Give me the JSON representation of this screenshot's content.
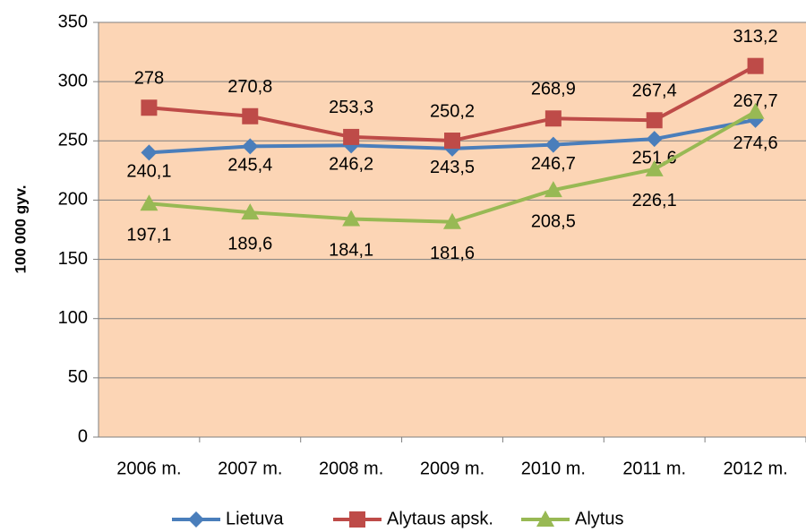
{
  "chart_data": {
    "type": "line",
    "y_label": "100 000 gyv.",
    "categories": [
      "2006 m.",
      "2007 m.",
      "2008 m.",
      "2009 m.",
      "2010 m.",
      "2011 m.",
      "2012 m."
    ],
    "series": [
      {
        "name": "Lietuva",
        "color": "#4a7ebb",
        "marker": "diamond",
        "values": [
          240.1,
          245.4,
          246.2,
          243.5,
          246.7,
          251.6,
          267.7
        ],
        "value_labels": [
          "240,1",
          "245,4",
          "246,2",
          "243,5",
          "246,7",
          "251,6",
          "267,7"
        ]
      },
      {
        "name": "Alytaus apsk.",
        "color": "#be4b48",
        "marker": "square",
        "values": [
          278,
          270.8,
          253.3,
          250.2,
          268.9,
          267.4,
          313.2
        ],
        "value_labels": [
          "278",
          "270,8",
          "253,3",
          "250,2",
          "268,9",
          "267,4",
          "313,2"
        ]
      },
      {
        "name": "Alytus",
        "color": "#98b954",
        "marker": "triangle",
        "values": [
          197.1,
          189.6,
          184.1,
          181.6,
          208.5,
          226.1,
          274.6
        ],
        "value_labels": [
          "197,1",
          "189,6",
          "184,1",
          "181,6",
          "208,5",
          "226,1",
          "274,6"
        ]
      }
    ],
    "ylim": [
      0,
      350
    ],
    "yticks": [
      0,
      50,
      100,
      150,
      200,
      250,
      300,
      350
    ],
    "grid": true,
    "plot_background": "#fcd5b5",
    "legend": "bottom"
  }
}
